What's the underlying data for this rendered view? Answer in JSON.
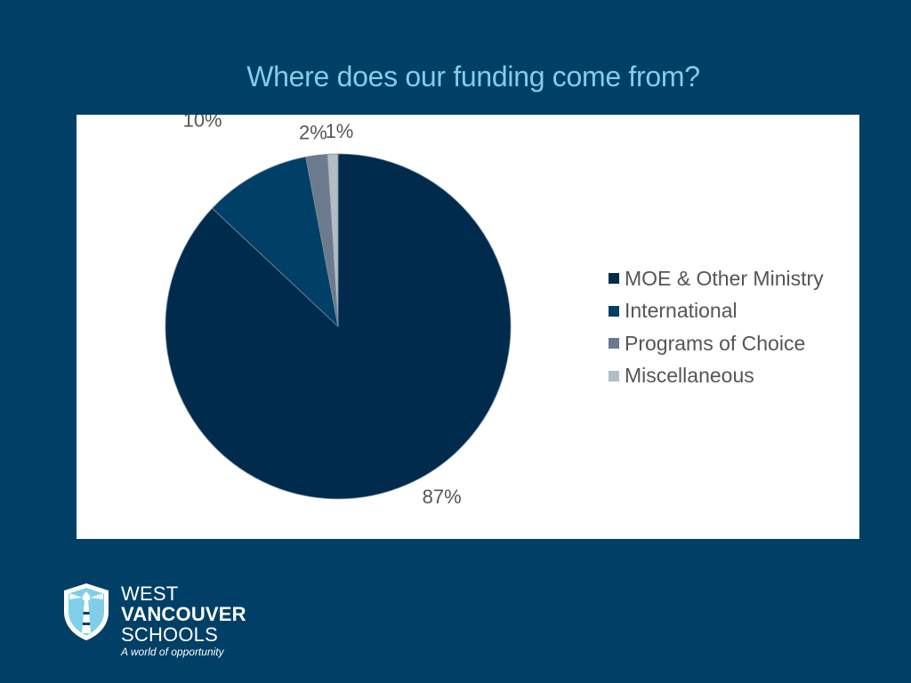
{
  "slide": {
    "title": "Where does our funding come from?"
  },
  "chart_data": {
    "type": "pie",
    "title": "",
    "categories": [
      "MOE & Other Ministry",
      "International",
      "Programs of Choice",
      "Miscellaneous"
    ],
    "values": [
      87,
      10,
      2,
      1
    ],
    "value_labels": [
      "87%",
      "10%",
      "2%",
      "1%"
    ],
    "unit": "%",
    "colors": [
      "#002b4d",
      "#003f66",
      "#6b7a8c",
      "#b4bcc4"
    ],
    "slice_border_color": "#7b8fa3",
    "start_angle": "12 o'clock, clockwise",
    "legend_placement": "right",
    "legend": [
      "MOE & Other Ministry",
      "International",
      "Programs of Choice",
      "Miscellaneous"
    ]
  },
  "logo": {
    "line1": "WEST",
    "line2": "VANCOUVER",
    "line3": "SCHOOLS",
    "tagline": "A world of opportunity",
    "name": "lighthouse-shield-icon"
  },
  "colors": {
    "background": "#003f66",
    "title": "#7fcfe9",
    "panel": "#ffffff",
    "label_text": "#555555"
  }
}
